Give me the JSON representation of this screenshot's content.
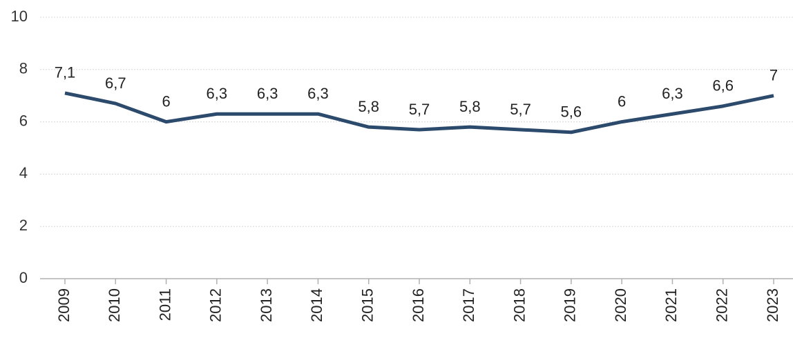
{
  "chart_data": {
    "type": "line",
    "categories": [
      "2009",
      "2010",
      "2011",
      "2012",
      "2013",
      "2014",
      "2015",
      "2016",
      "2017",
      "2018",
      "2019",
      "2020",
      "2021",
      "2022",
      "2023"
    ],
    "series": [
      {
        "color": "#2c4a6c",
        "values": [
          7.1,
          6.7,
          6,
          6.3,
          6.3,
          6.3,
          5.8,
          5.7,
          5.8,
          5.7,
          5.6,
          6,
          6.3,
          6.6,
          7
        ],
        "value_labels": [
          "7,1",
          "6,7",
          "6",
          "6,3",
          "6,3",
          "6,3",
          "5,8",
          "5,7",
          "5,8",
          "5,7",
          "5,6",
          "6",
          "6,3",
          "6,6",
          "7"
        ]
      }
    ],
    "ylim": [
      0,
      10
    ],
    "yticks": [
      0,
      2,
      4,
      6,
      8,
      10
    ],
    "grid": true
  }
}
